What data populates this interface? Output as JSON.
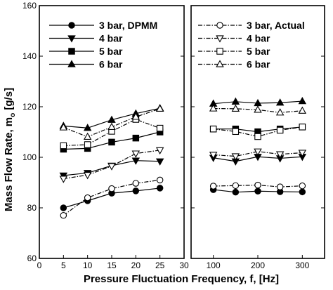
{
  "chart_data": {
    "type": "line",
    "ylabel": "Mass Flow Rate, m",
    "ylabel_sub": "o",
    "ylabel_unit": " [g/s]",
    "xlabel": "Pressure Fluctuation Frequency, f, [Hz]",
    "ylim": [
      60,
      160
    ],
    "y_ticks": [
      60,
      80,
      100,
      120,
      140,
      160
    ],
    "grid": false,
    "legend": {
      "left_panel": "top-left",
      "right_panel": "top-right"
    },
    "panels": [
      {
        "xlim": [
          0,
          30
        ],
        "x_ticks": [
          0,
          5,
          10,
          15,
          20,
          25,
          30
        ],
        "x": [
          5,
          10,
          15,
          20,
          25
        ],
        "series": [
          {
            "name": "3 bar, DPMM",
            "marker": "filled-circle",
            "line": "solid",
            "values": [
              80,
              82.8,
              85.8,
              86.7,
              87.8
            ]
          },
          {
            "name": "4 bar",
            "marker": "filled-triangle-down",
            "line": "solid",
            "values": [
              92.8,
              93.8,
              96.7,
              98.7,
              98.4
            ]
          },
          {
            "name": "5 bar",
            "marker": "filled-square",
            "line": "solid",
            "values": [
              103.2,
              103.5,
              106,
              107.6,
              110
            ]
          },
          {
            "name": "6 bar",
            "marker": "filled-triangle-up",
            "line": "solid",
            "values": [
              112.4,
              111.6,
              114.8,
              117.3,
              119.4
            ]
          },
          {
            "name": "",
            "marker": "open-circle",
            "line": "dashdot",
            "values": [
              77,
              84,
              87.6,
              89.7,
              91
            ]
          },
          {
            "name": "",
            "marker": "open-triangle-down",
            "line": "dashdot",
            "values": [
              91.5,
              93,
              96.5,
              101.5,
              102.8
            ]
          },
          {
            "name": "",
            "marker": "open-square",
            "line": "dashdot",
            "values": [
              104.6,
              105,
              110.3,
              115,
              111.5
            ]
          },
          {
            "name": "",
            "marker": "open-triangle-up",
            "line": "dashdot",
            "values": [
              111.8,
              108.1,
              112,
              116,
              119.2
            ]
          }
        ]
      },
      {
        "xlim": [
          50,
          350
        ],
        "x_ticks": [
          100,
          200,
          300
        ],
        "x": [
          100,
          150,
          200,
          250,
          300
        ],
        "series": [
          {
            "name": "",
            "marker": "filled-circle",
            "line": "solid",
            "values": [
              87.2,
              86.2,
              86.6,
              86.4,
              86.3
            ]
          },
          {
            "name": "",
            "marker": "filled-triangle-down",
            "line": "solid",
            "values": [
              99.8,
              98.4,
              100.2,
              99.6,
              100.2
            ]
          },
          {
            "name": "",
            "marker": "filled-square",
            "line": "solid",
            "values": [
              111.2,
              111.2,
              110.1,
              111.2,
              112
            ]
          },
          {
            "name": "",
            "marker": "filled-triangle-up",
            "line": "solid",
            "values": [
              121.2,
              122,
              121.4,
              121.6,
              122.2
            ]
          },
          {
            "name": "3 bar, Actual",
            "marker": "open-circle",
            "line": "dashdot",
            "values": [
              88.6,
              88.8,
              89,
              88.3,
              88.7
            ]
          },
          {
            "name": "4 bar",
            "marker": "open-triangle-down",
            "line": "dashdot",
            "values": [
              101,
              100.4,
              102.3,
              101.2,
              101.8
            ]
          },
          {
            "name": "5 bar",
            "marker": "open-square",
            "line": "dashdot",
            "values": [
              111.2,
              110.2,
              108.2,
              110.7,
              112
            ]
          },
          {
            "name": "6 bar",
            "marker": "open-triangle-up",
            "line": "dashdot",
            "values": [
              119.3,
              119.2,
              118.8,
              117.7,
              118.4
            ]
          }
        ]
      }
    ]
  }
}
